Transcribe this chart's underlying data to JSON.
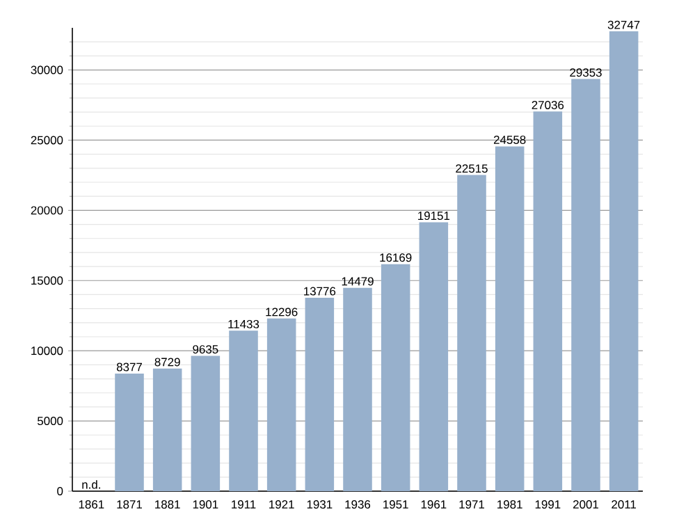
{
  "chart_data": {
    "type": "bar",
    "categories": [
      "1861",
      "1871",
      "1881",
      "1901",
      "1911",
      "1921",
      "1931",
      "1936",
      "1951",
      "1961",
      "1971",
      "1981",
      "1991",
      "2001",
      "2011"
    ],
    "values": [
      null,
      8377,
      8729,
      9635,
      11433,
      12296,
      13776,
      14479,
      16169,
      19151,
      22515,
      24558,
      27036,
      29353,
      32747
    ],
    "value_labels": [
      "n.d.",
      "8377",
      "8729",
      "9635",
      "11433",
      "12296",
      "13776",
      "14479",
      "16169",
      "19151",
      "22515",
      "24558",
      "27036",
      "29353",
      "32747"
    ],
    "color": "#97b0cc",
    "ylim": [
      0,
      33000
    ],
    "yticks": [
      0,
      {
        "value": 1000,
        "label": null
      },
      {
        "value": 2000,
        "label": null
      },
      {
        "value": 3000,
        "label": null
      },
      {
        "value": 4000,
        "label": null
      },
      5000,
      {
        "value": 6000,
        "label": null
      },
      {
        "value": 7000,
        "label": null
      },
      {
        "value": 8000,
        "label": null
      },
      {
        "value": 9000,
        "label": null
      },
      10000,
      {
        "value": 11000,
        "label": null
      },
      {
        "value": 12000,
        "label": null
      },
      {
        "value": 13000,
        "label": null
      },
      {
        "value": 14000,
        "label": null
      },
      15000,
      {
        "value": 16000,
        "label": null
      },
      {
        "value": 17000,
        "label": null
      },
      {
        "value": 18000,
        "label": null
      },
      {
        "value": 19000,
        "label": null
      },
      20000,
      {
        "value": 21000,
        "label": null
      },
      {
        "value": 22000,
        "label": null
      },
      {
        "value": 23000,
        "label": null
      },
      {
        "value": 24000,
        "label": null
      },
      25000,
      {
        "value": 26000,
        "label": null
      },
      {
        "value": 27000,
        "label": null
      },
      {
        "value": 28000,
        "label": null
      },
      {
        "value": 29000,
        "label": null
      },
      30000,
      {
        "value": 31000,
        "label": null
      },
      {
        "value": 32000,
        "label": null
      }
    ],
    "grid": "y"
  }
}
